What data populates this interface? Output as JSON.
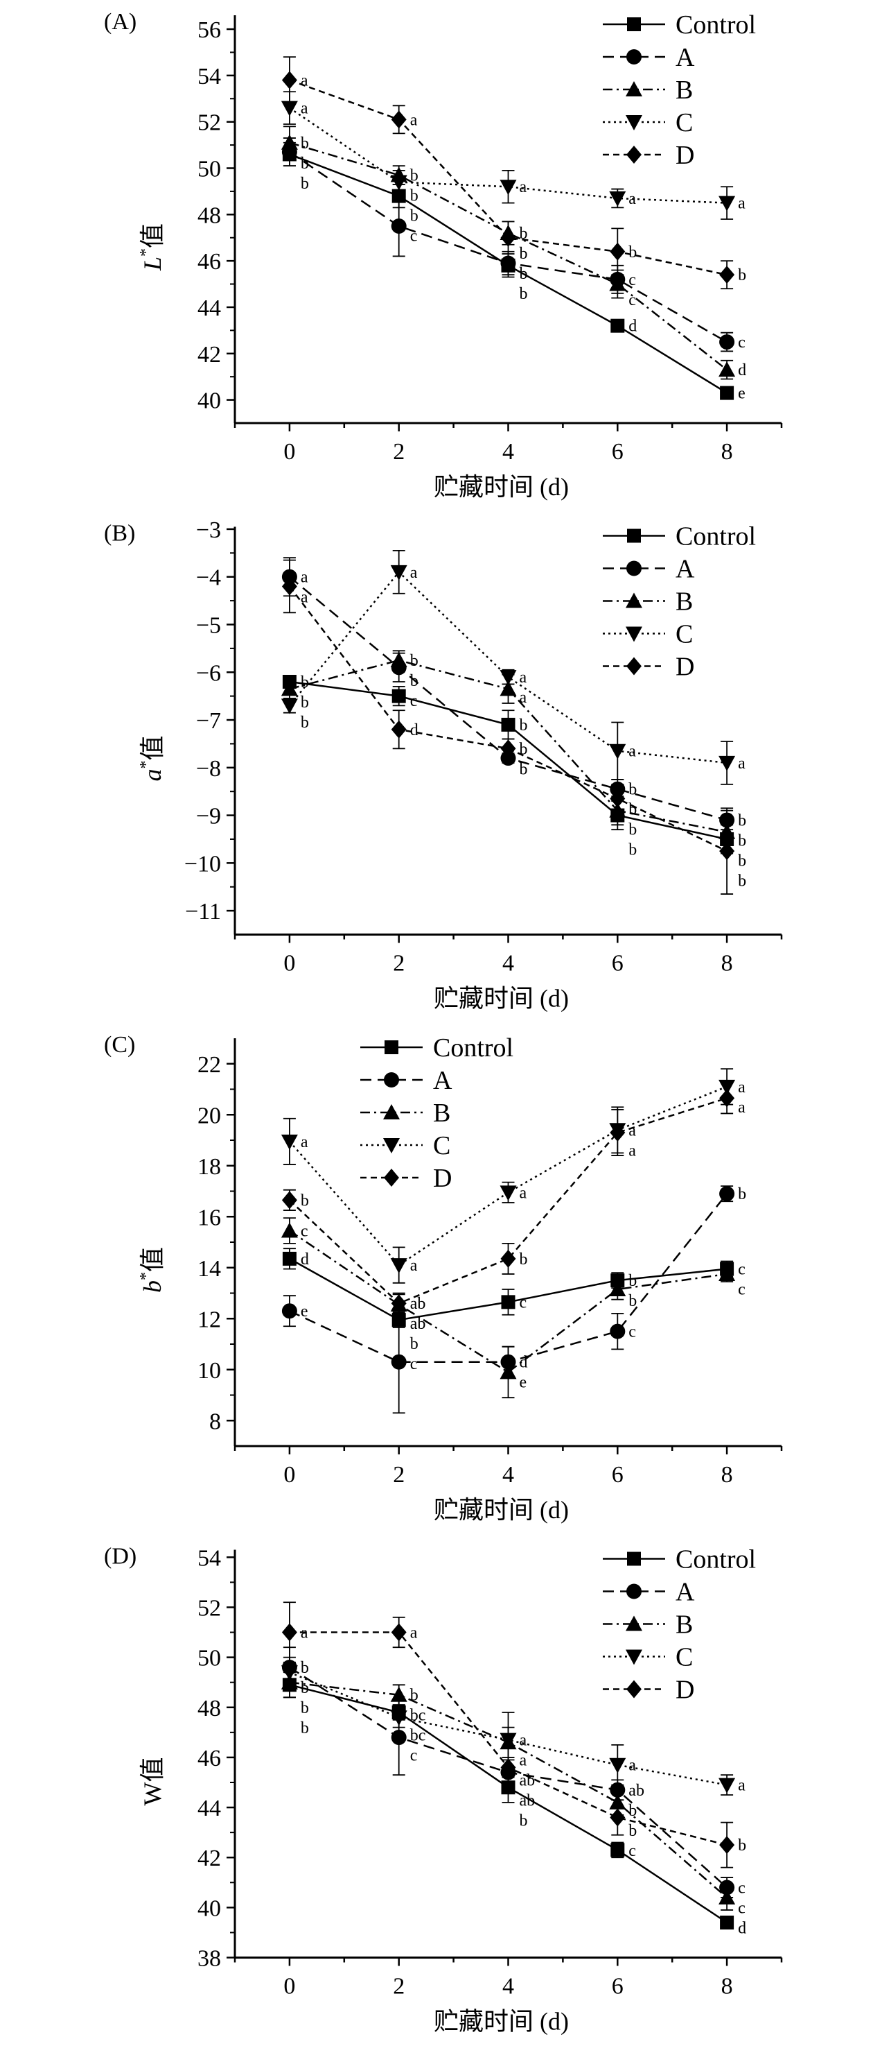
{
  "chart_data": [
    {
      "type": "line",
      "panel_label": "(A)",
      "ylabel": {
        "italic": "L",
        "sup": "*",
        "text": "值"
      },
      "xlabel": "贮藏时间 (d)",
      "x": [
        0,
        2,
        4,
        6,
        8
      ],
      "xticks": [
        0,
        2,
        4,
        6,
        8
      ],
      "xlim": [
        -1,
        9
      ],
      "yticks": [
        40,
        42,
        44,
        46,
        48,
        50,
        52,
        54,
        56
      ],
      "ylim": [
        39,
        56.6
      ],
      "legend": "top-right",
      "grid": false,
      "series": [
        {
          "name": "Control",
          "values": [
            50.6,
            48.8,
            45.8,
            43.2,
            40.3
          ],
          "error": [
            0.5,
            0.5,
            0.5,
            0.2,
            0.2
          ],
          "letters": [
            "b",
            "b",
            "b",
            "d",
            "e"
          ]
        },
        {
          "name": "A",
          "values": [
            50.7,
            47.5,
            45.9,
            45.2,
            42.5
          ],
          "error": [
            0.6,
            1.3,
            0.5,
            0.6,
            0.4
          ],
          "letters": [
            "b",
            "c",
            "b",
            "c",
            "c"
          ]
        },
        {
          "name": "B",
          "values": [
            51.1,
            49.7,
            47.2,
            45.0,
            41.3
          ],
          "error": [
            0.7,
            0.4,
            0.5,
            0.6,
            0.4
          ],
          "letters": [
            "b",
            "b",
            "b",
            "c",
            "d"
          ]
        },
        {
          "name": "C",
          "values": [
            52.6,
            49.4,
            49.2,
            48.7,
            48.5
          ],
          "error": [
            0.7,
            0.5,
            0.7,
            0.4,
            0.7
          ],
          "letters": [
            "a",
            "b",
            "a",
            "a",
            "a"
          ]
        },
        {
          "name": "D",
          "values": [
            53.8,
            52.1,
            47.0,
            46.4,
            45.4
          ],
          "error": [
            1.0,
            0.6,
            0.7,
            1.0,
            0.6
          ],
          "letters": [
            "a",
            "a",
            "b",
            "b",
            "b"
          ]
        }
      ]
    },
    {
      "type": "line",
      "panel_label": "(B)",
      "ylabel": {
        "italic": "a",
        "sup": "*",
        "text": "值"
      },
      "xlabel": "贮藏时间 (d)",
      "x": [
        0,
        2,
        4,
        6,
        8
      ],
      "xticks": [
        0,
        2,
        4,
        6,
        8
      ],
      "xlim": [
        -1,
        9
      ],
      "yticks": [
        -11,
        -10,
        -9,
        -8,
        -7,
        -6,
        -5,
        -4,
        -3
      ],
      "ylim": [
        -11.5,
        -2.95
      ],
      "legend": "top-right",
      "grid": false,
      "series": [
        {
          "name": "Control",
          "values": [
            -6.2,
            -6.5,
            -7.1,
            -9.0,
            -9.5
          ],
          "error": [
            0.1,
            0.2,
            0.3,
            0.3,
            0.3
          ],
          "letters": [
            "b",
            "c",
            "b",
            "b",
            "b"
          ]
        },
        {
          "name": "A",
          "values": [
            -4.0,
            -5.9,
            -7.8,
            -8.45,
            -9.1
          ],
          "error": [
            0.4,
            0.3,
            0.1,
            0.2,
            0.2
          ],
          "letters": [
            "a",
            "b",
            "b",
            "b",
            "b"
          ]
        },
        {
          "name": "B",
          "values": [
            -6.35,
            -5.75,
            -6.35,
            -8.9,
            -9.35
          ],
          "error": [
            0.2,
            0.2,
            0.3,
            0.3,
            0.2
          ],
          "letters": [
            "b",
            "b",
            "a",
            "b",
            "b"
          ]
        },
        {
          "name": "C",
          "values": [
            -6.7,
            -3.9,
            -6.1,
            -7.65,
            -7.9
          ],
          "error": [
            0.15,
            0.45,
            0.15,
            0.6,
            0.45
          ],
          "letters": [
            "b",
            "a",
            "a",
            "a",
            "a"
          ]
        },
        {
          "name": "D",
          "values": [
            -4.2,
            -7.2,
            -7.6,
            -8.65,
            -9.75
          ],
          "error": [
            0.55,
            0.4,
            0.2,
            0.3,
            0.9
          ],
          "letters": [
            "a",
            "d",
            "b",
            "b",
            "b"
          ]
        }
      ]
    },
    {
      "type": "line",
      "panel_label": "(C)",
      "ylabel": {
        "italic": "b",
        "sup": "*",
        "text": "值"
      },
      "xlabel": "贮藏时间 (d)",
      "x": [
        0,
        2,
        4,
        6,
        8
      ],
      "xticks": [
        0,
        2,
        4,
        6,
        8
      ],
      "xlim": [
        -1,
        9
      ],
      "yticks": [
        8,
        10,
        12,
        14,
        16,
        18,
        20,
        22
      ],
      "ylim": [
        7,
        23
      ],
      "legend": "top-left",
      "grid": false,
      "series": [
        {
          "name": "Control",
          "values": [
            14.35,
            11.95,
            12.65,
            13.5,
            13.95
          ],
          "error": [
            0.4,
            0.3,
            0.5,
            0.3,
            0.3
          ],
          "letters": [
            "d",
            "b",
            "c",
            "b",
            "c"
          ]
        },
        {
          "name": "A",
          "values": [
            12.3,
            10.3,
            10.3,
            11.5,
            16.9
          ],
          "error": [
            0.6,
            2.0,
            0.6,
            0.7,
            0.3
          ],
          "letters": [
            "e",
            "c",
            "d",
            "c",
            "b"
          ]
        },
        {
          "name": "B",
          "values": [
            15.45,
            12.55,
            9.9,
            13.15,
            13.75
          ],
          "error": [
            0.5,
            0.4,
            1.0,
            0.4,
            0.3
          ],
          "letters": [
            "c",
            "ab",
            "e",
            "b",
            "c"
          ]
        },
        {
          "name": "C",
          "values": [
            18.95,
            14.1,
            16.95,
            19.4,
            21.1
          ],
          "error": [
            0.9,
            0.7,
            0.4,
            0.9,
            0.7
          ],
          "letters": [
            "a",
            "a",
            "a",
            "a",
            "a"
          ]
        },
        {
          "name": "D",
          "values": [
            16.65,
            12.6,
            14.35,
            19.3,
            20.65
          ],
          "error": [
            0.4,
            0.4,
            0.6,
            0.9,
            0.6
          ],
          "letters": [
            "b",
            "ab",
            "b",
            "a",
            "a"
          ]
        }
      ]
    },
    {
      "type": "line",
      "panel_label": "(D)",
      "ylabel": {
        "italic": "",
        "sup": "",
        "text": "W值"
      },
      "xlabel": "贮藏时间 (d)",
      "x": [
        0,
        2,
        4,
        6,
        8
      ],
      "xticks": [
        0,
        2,
        4,
        6,
        8
      ],
      "xlim": [
        -1,
        9
      ],
      "yticks": [
        38,
        40,
        42,
        44,
        46,
        48,
        50,
        52,
        54
      ],
      "ylim": [
        38,
        54.3
      ],
      "legend": "top-right",
      "grid": false,
      "series": [
        {
          "name": "Control",
          "values": [
            48.9,
            47.8,
            44.8,
            42.3,
            39.4
          ],
          "error": [
            0.5,
            0.3,
            0.6,
            0.3,
            0.2
          ],
          "letters": [
            "b",
            "bc",
            "b",
            "c",
            "d"
          ]
        },
        {
          "name": "A",
          "values": [
            49.6,
            46.8,
            45.4,
            44.7,
            40.8
          ],
          "error": [
            0.8,
            1.5,
            0.5,
            0.4,
            0.4
          ],
          "letters": [
            "b",
            "c",
            "ab",
            "ab",
            "c"
          ]
        },
        {
          "name": "B",
          "values": [
            49.0,
            48.5,
            46.6,
            44.2,
            40.4
          ],
          "error": [
            0.6,
            0.4,
            0.6,
            0.5,
            0.5
          ],
          "letters": [
            "b",
            "b",
            "a",
            "b",
            "c"
          ]
        },
        {
          "name": "C",
          "values": [
            49.4,
            47.6,
            46.7,
            45.7,
            44.9
          ],
          "error": [
            0.6,
            0.4,
            1.1,
            0.8,
            0.4
          ],
          "letters": [
            "b",
            "bc",
            "a",
            "a",
            "a"
          ]
        },
        {
          "name": "D",
          "values": [
            51.0,
            51.0,
            45.6,
            43.6,
            42.5
          ],
          "error": [
            1.2,
            0.6,
            0.4,
            0.7,
            0.9
          ],
          "letters": [
            "a",
            "a",
            "ab",
            "b",
            "b"
          ]
        }
      ]
    }
  ],
  "series_styles": {
    "Control": {
      "marker": "square",
      "line": "solid"
    },
    "A": {
      "marker": "circle",
      "line": "long-dash"
    },
    "B": {
      "marker": "triangle-up",
      "line": "dash-dot"
    },
    "C": {
      "marker": "triangle-down",
      "line": "dotted"
    },
    "D": {
      "marker": "diamond",
      "line": "short-dash"
    }
  },
  "colors": {
    "ink": "#000000",
    "background": "#ffffff"
  }
}
